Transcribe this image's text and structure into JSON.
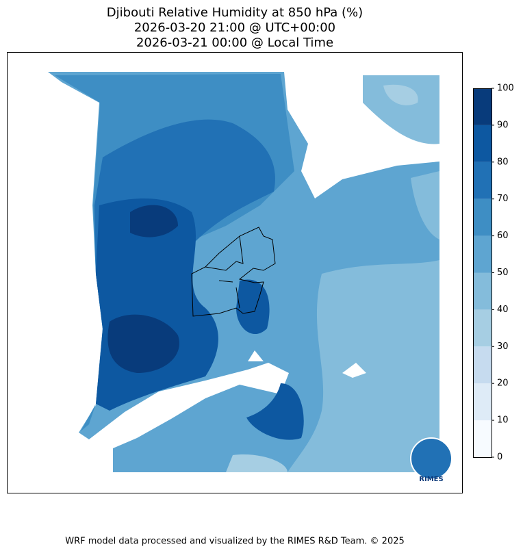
{
  "chart_data": {
    "type": "map",
    "title": [
      "Djibouti Relative Humidity at 850 hPa (%)",
      "2026-03-20 21:00 @ UTC+00:00",
      "2026-03-21 00:00 @ Local Time"
    ],
    "colorbar": {
      "ylim": [
        0,
        100
      ],
      "yticks": [
        0,
        10,
        20,
        30,
        40,
        50,
        60,
        70,
        80,
        90,
        100
      ],
      "colors": [
        "#f7fbff",
        "#deebf7",
        "#c6dbef",
        "#a6cee3",
        "#84bcdb",
        "#5ea5d1",
        "#3e8ec4",
        "#2171b5",
        "#0d58a1",
        "#083b7b"
      ]
    }
  },
  "logo": "RIMES",
  "footer": "WRF model data processed and visualized by the RIMES R&D Team. © 2025"
}
